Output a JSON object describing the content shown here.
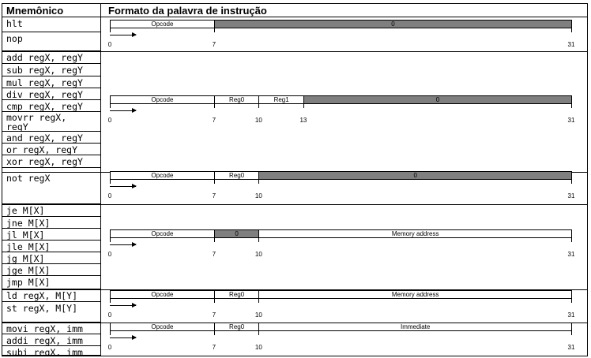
{
  "headers": {
    "mnemonic": "Mnemônico",
    "format": "Formato da palavra de instrução"
  },
  "groups": [
    {
      "mnemonics": [
        "hlt",
        "nop"
      ],
      "fields": [
        {
          "label": "Opcode",
          "start": 0,
          "end": 7,
          "grey": false
        },
        {
          "label": "0",
          "start": 7,
          "end": 31,
          "grey": true
        }
      ],
      "bits": [
        "0",
        "7",
        "31"
      ]
    },
    {
      "mnemonics": [
        "add regX, regY",
        "sub regX, regY",
        "mul regX, regY",
        "div regX, regY",
        "cmp regX, regY",
        "movrr regX,\nregY",
        "and regX, regY",
        "or regX, regY",
        "xor regX, regY"
      ],
      "fields": [
        {
          "label": "Opcode",
          "start": 0,
          "end": 7,
          "grey": false
        },
        {
          "label": "Reg0",
          "start": 7,
          "end": 10,
          "grey": false
        },
        {
          "label": "Reg1",
          "start": 10,
          "end": 13,
          "grey": false
        },
        {
          "label": "0",
          "start": 13,
          "end": 31,
          "grey": true
        }
      ],
      "bits": [
        "0",
        "7",
        "10",
        "13",
        "31"
      ]
    },
    {
      "mnemonics": [
        "not regX"
      ],
      "fields": [
        {
          "label": "Opcode",
          "start": 0,
          "end": 7,
          "grey": false
        },
        {
          "label": "Reg0",
          "start": 7,
          "end": 10,
          "grey": false
        },
        {
          "label": "0",
          "start": 10,
          "end": 31,
          "grey": true
        }
      ],
      "bits": [
        "0",
        "7",
        "10",
        "31"
      ]
    },
    {
      "mnemonics": [
        "je M[X]",
        "jne M[X]",
        "jl M[X]",
        "jle M[X]",
        "jg M[X]",
        "jge M[X]",
        "jmp M[X]"
      ],
      "fields": [
        {
          "label": "Opcode",
          "start": 0,
          "end": 7,
          "grey": false
        },
        {
          "label": "0",
          "start": 7,
          "end": 10,
          "grey": true
        },
        {
          "label": "Memory address",
          "start": 10,
          "end": 31,
          "grey": false
        }
      ],
      "bits": [
        "0",
        "7",
        "10",
        "31"
      ]
    },
    {
      "mnemonics": [
        "ld regX, M[Y]",
        "st regX, M[Y]"
      ],
      "fields": [
        {
          "label": "Opcode",
          "start": 0,
          "end": 7,
          "grey": false
        },
        {
          "label": "Reg0",
          "start": 7,
          "end": 10,
          "grey": false
        },
        {
          "label": "Memory address",
          "start": 10,
          "end": 31,
          "grey": false
        }
      ],
      "bits": [
        "0",
        "7",
        "10",
        "31"
      ]
    },
    {
      "mnemonics": [
        "movi regX, imm",
        "addi regX, imm",
        "subi regX, imm"
      ],
      "fields": [
        {
          "label": "Opcode",
          "start": 0,
          "end": 7,
          "grey": false
        },
        {
          "label": "Reg0",
          "start": 7,
          "end": 10,
          "grey": false
        },
        {
          "label": "Immediate",
          "start": 10,
          "end": 31,
          "grey": false
        }
      ],
      "bits": [
        "0",
        "7",
        "10",
        "31"
      ]
    }
  ]
}
